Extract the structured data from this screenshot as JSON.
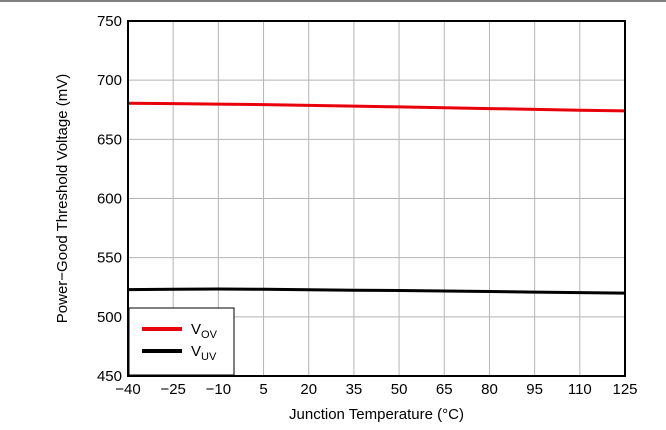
{
  "chart_data": {
    "type": "line",
    "title": "",
    "xlabel": "Junction Temperature (°C)",
    "ylabel": "Power−Good Threshold Voltage (mV)",
    "xlim": [
      -40,
      125
    ],
    "ylim": [
      450,
      750
    ],
    "xticks": [
      -40,
      -25,
      -10,
      5,
      20,
      35,
      50,
      65,
      80,
      95,
      110,
      125
    ],
    "xtick_labels": [
      "−40",
      "−25",
      "−10",
      "5",
      "20",
      "35",
      "50",
      "65",
      "80",
      "95",
      "110",
      "125"
    ],
    "yticks": [
      450,
      500,
      550,
      600,
      650,
      700,
      750
    ],
    "ytick_labels": [
      "450",
      "500",
      "550",
      "600",
      "650",
      "700",
      "750"
    ],
    "grid": true,
    "legend_position": "bottom-left",
    "series": [
      {
        "name": "V",
        "name_sub": "OV",
        "color": "#e8000b",
        "x": [
          -40,
          -25,
          -10,
          5,
          20,
          35,
          50,
          65,
          80,
          95,
          110,
          125
        ],
        "y": [
          680.5,
          680.2,
          679.8,
          679.3,
          678.7,
          678.1,
          677.4,
          676.7,
          676.0,
          675.3,
          674.6,
          674.0
        ]
      },
      {
        "name": "V",
        "name_sub": "UV",
        "color": "#000000",
        "x": [
          -40,
          -25,
          -10,
          5,
          20,
          35,
          50,
          65,
          80,
          95,
          110,
          125
        ],
        "y": [
          523.0,
          523.3,
          523.5,
          523.3,
          522.9,
          522.5,
          522.2,
          521.8,
          521.4,
          520.9,
          520.5,
          520.0
        ]
      }
    ]
  }
}
